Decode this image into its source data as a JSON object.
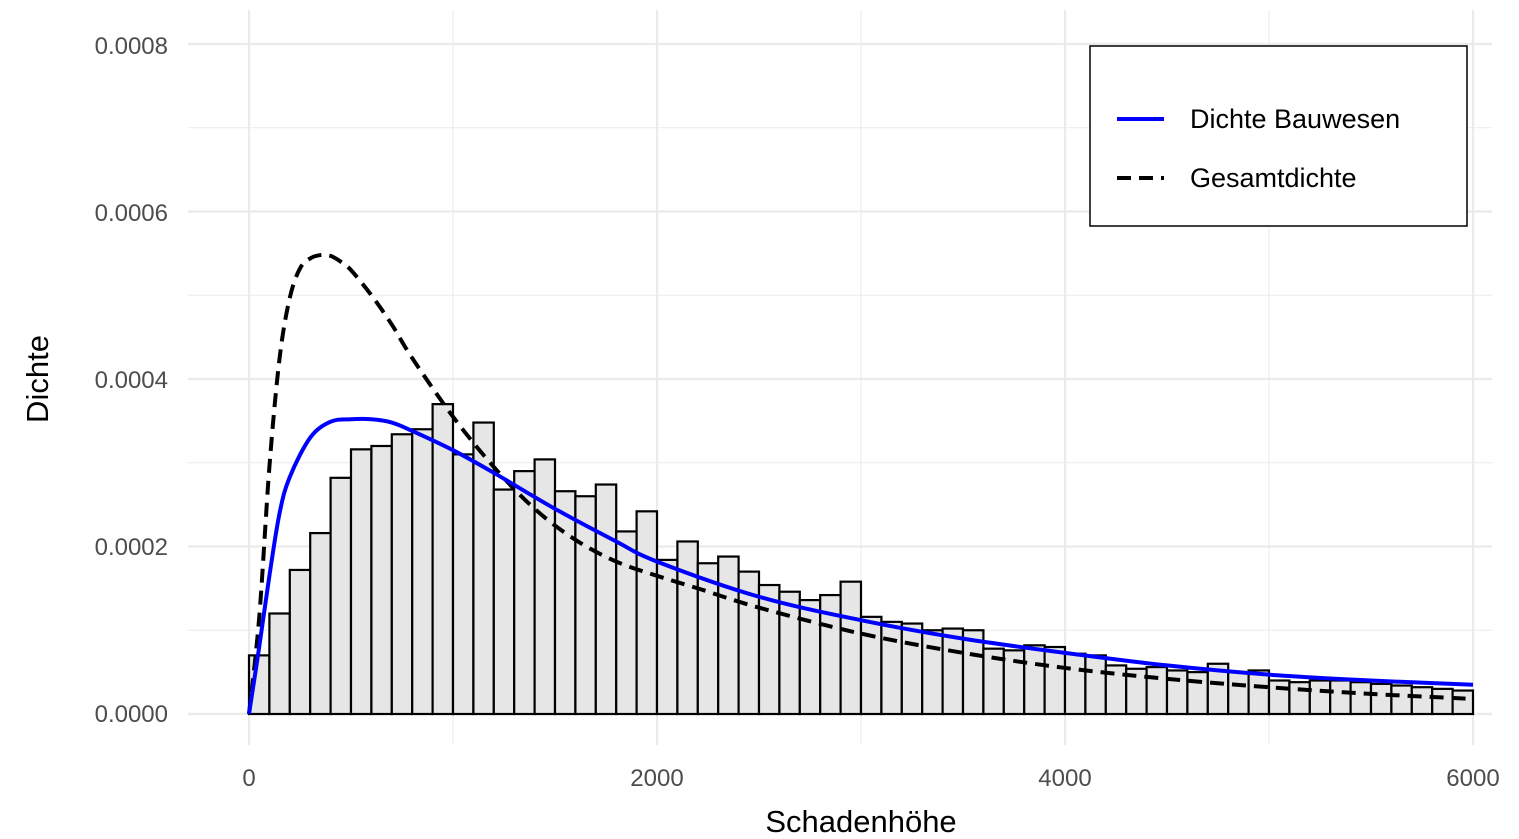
{
  "chart_data": {
    "type": "bar",
    "title": "",
    "xlabel": "Schadenhöhe",
    "ylabel": "Dichte",
    "xlim": [
      0,
      6000
    ],
    "ylim": [
      0,
      0.0008
    ],
    "x_ticks": [
      "0",
      "2000",
      "4000",
      "6000"
    ],
    "y_ticks": [
      "0.0000",
      "0.0002",
      "0.0004",
      "0.0006",
      "0.0008"
    ],
    "grid": true,
    "legend_position": "top-right",
    "histogram": {
      "bin_width": 100,
      "bin_start": 0,
      "fill": "#e6e6e6",
      "stroke": "#000000",
      "values": [
        7e-05,
        0.00012,
        0.000172,
        0.000216,
        0.000282,
        0.000316,
        0.00032,
        0.000334,
        0.00034,
        0.00037,
        0.00031,
        0.000348,
        0.000268,
        0.00029,
        0.000304,
        0.000266,
        0.00026,
        0.000274,
        0.000218,
        0.000242,
        0.000184,
        0.000206,
        0.00018,
        0.000188,
        0.00017,
        0.000154,
        0.000146,
        0.000136,
        0.000142,
        0.000158,
        0.000116,
        0.00011,
        0.000108,
        0.0001,
        0.000102,
        0.0001,
        7.8e-05,
        7.6e-05,
        8.2e-05,
        8e-05,
        7.2e-05,
        7e-05,
        5.8e-05,
        5.4e-05,
        5.6e-05,
        5.2e-05,
        5e-05,
        6e-05,
        5e-05,
        5.2e-05,
        4e-05,
        3.8e-05,
        4e-05,
        4e-05,
        3.8e-05,
        3.6e-05,
        3.4e-05,
        3.2e-05,
        3e-05,
        2.8e-05
      ]
    },
    "series": [
      {
        "name": "Dichte Bauwesen",
        "color": "#0000ff",
        "style": "solid",
        "x": [
          0,
          50,
          100,
          150,
          200,
          300,
          400,
          500,
          600,
          700,
          800,
          1000,
          1200,
          1500,
          1800,
          2000,
          2500,
          3000,
          3500,
          4000,
          4500,
          5000,
          5500,
          6000
        ],
        "y": [
          0.0,
          8e-05,
          0.000165,
          0.00024,
          0.000283,
          0.00033,
          0.000349,
          0.000352,
          0.000352,
          0.000348,
          0.000338,
          0.000315,
          0.000288,
          0.000245,
          0.000206,
          0.000182,
          0.00014,
          0.000112,
          9e-05,
          7.3e-05,
          5.8e-05,
          4.7e-05,
          4e-05,
          3.5e-05
        ]
      },
      {
        "name": "Gesamtdichte",
        "color": "#000000",
        "style": "dashed",
        "x": [
          0,
          50,
          100,
          150,
          200,
          250,
          300,
          350,
          400,
          450,
          500,
          600,
          700,
          800,
          1000,
          1200,
          1400,
          1600,
          1800,
          2000,
          2200,
          2500,
          3000,
          3500,
          4000,
          4500,
          5000,
          5500,
          6000
        ],
        "y": [
          0.0,
          0.000115,
          0.000295,
          0.000425,
          0.000497,
          0.000532,
          0.000544,
          0.000548,
          0.000547,
          0.00054,
          0.00053,
          0.0005,
          0.000465,
          0.000425,
          0.000355,
          0.000295,
          0.000245,
          0.000208,
          0.000182,
          0.000165,
          0.00015,
          0.000127,
          9.6e-05,
          7.3e-05,
          5.5e-05,
          4.2e-05,
          3.2e-05,
          2.4e-05,
          1.8e-05
        ]
      }
    ]
  }
}
